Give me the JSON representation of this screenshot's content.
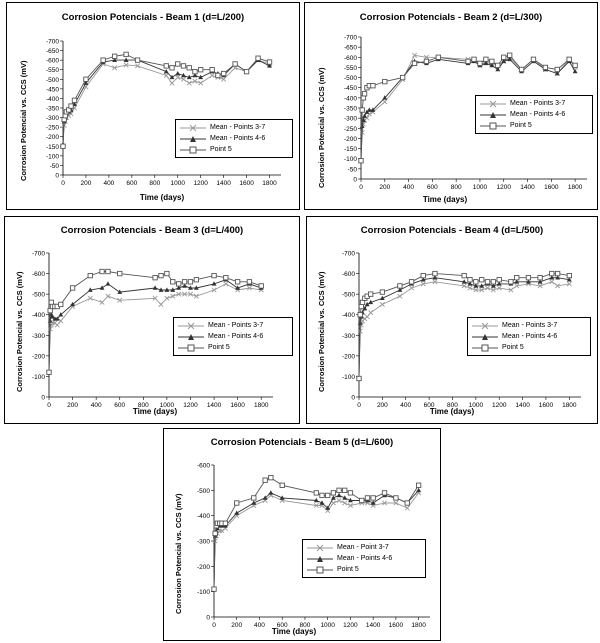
{
  "chart_data": [
    {
      "type": "line",
      "title": "Corrosion Potencials  - Beam 1 (d=L/200)",
      "xlabel": "Time (days)",
      "ylabel": "Corrosion Potencial vs. CCS (mV)",
      "xlim": [
        0,
        1900
      ],
      "ylim": [
        0,
        -700
      ],
      "xticks": [
        0,
        200,
        400,
        600,
        800,
        1000,
        1200,
        1400,
        1600,
        1800
      ],
      "yticks": [
        0,
        -50,
        -100,
        -150,
        -200,
        -250,
        -300,
        -350,
        -400,
        -450,
        -500,
        -550,
        -600,
        -650,
        -700
      ],
      "legend_position": "right",
      "series": [
        {
          "name": "Mean - Points 3-7",
          "color": "#999999",
          "marker": "x",
          "x": [
            0,
            10,
            20,
            30,
            50,
            70,
            100,
            200,
            350,
            450,
            550,
            650,
            900,
            950,
            1000,
            1050,
            1100,
            1150,
            1200,
            1300,
            1350,
            1400,
            1500,
            1600,
            1700,
            1800
          ],
          "y": [
            -150,
            -260,
            -280,
            -300,
            -310,
            -320,
            -350,
            -460,
            -580,
            -560,
            -575,
            -570,
            -520,
            -480,
            -510,
            -500,
            -480,
            -490,
            -480,
            -520,
            -510,
            -500,
            -560,
            -540,
            -600,
            -580
          ]
        },
        {
          "name": "Mean - Points 4-6",
          "color": "#333333",
          "marker": "triangle",
          "x": [
            0,
            10,
            20,
            30,
            50,
            70,
            100,
            200,
            350,
            450,
            550,
            650,
            900,
            950,
            1000,
            1050,
            1100,
            1150,
            1200,
            1300,
            1350,
            1400,
            1500,
            1600,
            1700,
            1800
          ],
          "y": [
            -160,
            -280,
            -300,
            -320,
            -330,
            -340,
            -370,
            -480,
            -590,
            -600,
            -600,
            -600,
            -540,
            -510,
            -530,
            -520,
            -510,
            -520,
            -510,
            -540,
            -530,
            -520,
            -580,
            -540,
            -600,
            -570
          ]
        },
        {
          "name": "Point 5",
          "color": "#555555",
          "marker": "square",
          "x": [
            0,
            10,
            20,
            30,
            50,
            70,
            100,
            200,
            350,
            450,
            550,
            650,
            900,
            950,
            1000,
            1050,
            1100,
            1150,
            1200,
            1300,
            1350,
            1400,
            1500,
            1600,
            1700,
            1800
          ],
          "y": [
            -150,
            -290,
            -310,
            -330,
            -340,
            -360,
            -390,
            -500,
            -600,
            -620,
            -630,
            -600,
            -570,
            -560,
            -580,
            -570,
            -560,
            -540,
            -550,
            -550,
            -520,
            -530,
            -580,
            -540,
            -610,
            -590
          ]
        }
      ]
    },
    {
      "type": "line",
      "title": "Corrosion Potencials  - Beam 2 (d=L/300)",
      "xlabel": "Time (days)",
      "ylabel": "Corrosion Potencial vs. CCS (mV)",
      "xlim": [
        0,
        1900
      ],
      "ylim": [
        0,
        -700
      ],
      "xticks": [
        0,
        200,
        400,
        600,
        800,
        1000,
        1200,
        1400,
        1600,
        1800
      ],
      "yticks": [
        0,
        -50,
        -100,
        -150,
        -200,
        -250,
        -300,
        -350,
        -400,
        -450,
        -500,
        -550,
        -600,
        -650,
        -700
      ],
      "legend_position": "right",
      "series": [
        {
          "name": "Mean - Points 3-7",
          "color": "#999999",
          "marker": "x",
          "x": [
            0,
            10,
            20,
            30,
            50,
            70,
            100,
            200,
            350,
            450,
            550,
            650,
            900,
            950,
            1000,
            1050,
            1100,
            1150,
            1200,
            1250,
            1350,
            1450,
            1550,
            1650,
            1750,
            1800
          ],
          "y": [
            -90,
            -230,
            -270,
            -290,
            -300,
            -320,
            -330,
            -380,
            -490,
            -610,
            -600,
            -600,
            -590,
            -590,
            -560,
            -580,
            -570,
            -560,
            -580,
            -600,
            -540,
            -590,
            -540,
            -520,
            -590,
            -550
          ]
        },
        {
          "name": "Mean - Points 4-6",
          "color": "#333333",
          "marker": "triangle",
          "x": [
            0,
            10,
            20,
            30,
            50,
            70,
            100,
            200,
            350,
            450,
            550,
            650,
            900,
            950,
            1000,
            1050,
            1100,
            1150,
            1200,
            1250,
            1350,
            1450,
            1550,
            1650,
            1750,
            1800
          ],
          "y": [
            -90,
            -260,
            -290,
            -310,
            -330,
            -340,
            -340,
            -400,
            -500,
            -580,
            -570,
            -590,
            -570,
            -580,
            -560,
            -570,
            -560,
            -540,
            -580,
            -590,
            -530,
            -580,
            -540,
            -520,
            -580,
            -530
          ]
        },
        {
          "name": "Point 5",
          "color": "#555555",
          "marker": "square",
          "x": [
            0,
            10,
            20,
            30,
            50,
            70,
            100,
            200,
            350,
            450,
            550,
            650,
            900,
            950,
            1000,
            1050,
            1100,
            1150,
            1200,
            1250,
            1350,
            1450,
            1550,
            1650,
            1750,
            1800
          ],
          "y": [
            -90,
            -340,
            -400,
            -420,
            -450,
            -460,
            -460,
            -480,
            -500,
            -570,
            -580,
            -600,
            -580,
            -590,
            -570,
            -590,
            -580,
            -560,
            -600,
            -610,
            -540,
            -590,
            -550,
            -540,
            -590,
            -560
          ]
        }
      ]
    },
    {
      "type": "line",
      "title": "Corrosion Potencials  - Beam 3 (d=L/400)",
      "xlabel": "Time (days)",
      "ylabel": "Corrosion Potencial vs. CCS (mV)",
      "xlim": [
        0,
        1900
      ],
      "ylim": [
        0,
        -700
      ],
      "xticks": [
        0,
        200,
        400,
        600,
        800,
        1000,
        1200,
        1400,
        1600,
        1800
      ],
      "yticks": [
        0,
        -100,
        -200,
        -300,
        -400,
        -500,
        -600,
        -700
      ],
      "legend_position": "right",
      "series": [
        {
          "name": "Mean - Points 3-7",
          "color": "#999999",
          "marker": "x",
          "x": [
            0,
            10,
            20,
            30,
            50,
            70,
            100,
            200,
            350,
            450,
            500,
            600,
            900,
            950,
            1000,
            1050,
            1100,
            1150,
            1200,
            1250,
            1400,
            1500,
            1600,
            1700,
            1800
          ],
          "y": [
            -120,
            -330,
            -350,
            -360,
            -360,
            -350,
            -370,
            -440,
            -480,
            -460,
            -490,
            -470,
            -480,
            -450,
            -480,
            -490,
            -500,
            -500,
            -500,
            -490,
            -520,
            -550,
            -520,
            -530,
            -520
          ]
        },
        {
          "name": "Mean - Points 4-6",
          "color": "#333333",
          "marker": "triangle",
          "x": [
            0,
            10,
            20,
            30,
            50,
            70,
            100,
            200,
            350,
            450,
            500,
            600,
            900,
            950,
            1000,
            1050,
            1100,
            1150,
            1200,
            1250,
            1400,
            1500,
            1600,
            1700,
            1800
          ],
          "y": [
            -120,
            -370,
            -400,
            -390,
            -380,
            -380,
            -400,
            -450,
            -520,
            -530,
            -550,
            -510,
            -530,
            -520,
            -520,
            -520,
            -530,
            -540,
            -530,
            -530,
            -550,
            -570,
            -530,
            -550,
            -530
          ]
        },
        {
          "name": "Point 5",
          "color": "#555555",
          "marker": "square",
          "x": [
            0,
            10,
            20,
            30,
            50,
            70,
            100,
            200,
            350,
            450,
            500,
            600,
            900,
            950,
            1000,
            1050,
            1100,
            1150,
            1200,
            1250,
            1400,
            1500,
            1600,
            1700,
            1800
          ],
          "y": [
            -120,
            -420,
            -460,
            -440,
            -440,
            -440,
            -450,
            -530,
            -590,
            -610,
            -610,
            -600,
            -580,
            -590,
            -600,
            -560,
            -550,
            -560,
            -560,
            -570,
            -590,
            -580,
            -560,
            -560,
            -540
          ]
        }
      ]
    },
    {
      "type": "line",
      "title": "Corrosion Potencials  - Beam 4 (d=L/500)",
      "xlabel": "Time (days)",
      "ylabel": "Corrosion Potencial vs. CCS (mV)",
      "xlim": [
        0,
        1900
      ],
      "ylim": [
        0,
        -700
      ],
      "xticks": [
        0,
        200,
        400,
        600,
        800,
        1000,
        1200,
        1400,
        1600,
        1800
      ],
      "yticks": [
        0,
        -100,
        -200,
        -300,
        -400,
        -500,
        -600,
        -700
      ],
      "legend_position": "right",
      "series": [
        {
          "name": "Mean - Points 3-7",
          "color": "#999999",
          "marker": "x",
          "x": [
            0,
            10,
            20,
            30,
            50,
            70,
            100,
            200,
            350,
            450,
            550,
            650,
            900,
            950,
            1000,
            1050,
            1100,
            1150,
            1200,
            1300,
            1350,
            1450,
            1550,
            1650,
            1700,
            1800
          ],
          "y": [
            -90,
            -320,
            -350,
            -370,
            -380,
            -390,
            -410,
            -450,
            -490,
            -530,
            -550,
            -560,
            -540,
            -530,
            -520,
            -520,
            -530,
            -520,
            -530,
            -520,
            -540,
            -550,
            -540,
            -560,
            -540,
            -550
          ]
        },
        {
          "name": "Mean - Points 4-6",
          "color": "#333333",
          "marker": "triangle",
          "x": [
            0,
            10,
            20,
            30,
            50,
            70,
            100,
            200,
            350,
            450,
            550,
            650,
            900,
            950,
            1000,
            1050,
            1100,
            1150,
            1200,
            1300,
            1350,
            1450,
            1550,
            1650,
            1700,
            1800
          ],
          "y": [
            -90,
            -360,
            -390,
            -410,
            -430,
            -450,
            -460,
            -480,
            -520,
            -550,
            -570,
            -580,
            -560,
            -550,
            -540,
            -540,
            -550,
            -540,
            -550,
            -550,
            -560,
            -560,
            -560,
            -580,
            -580,
            -570
          ]
        },
        {
          "name": "Point 5",
          "color": "#555555",
          "marker": "square",
          "x": [
            0,
            10,
            20,
            30,
            50,
            70,
            100,
            200,
            350,
            450,
            550,
            650,
            900,
            950,
            1000,
            1050,
            1100,
            1150,
            1200,
            1300,
            1350,
            1450,
            1550,
            1650,
            1700,
            1800
          ],
          "y": [
            -90,
            -400,
            -440,
            -460,
            -480,
            -490,
            -500,
            -510,
            -540,
            -560,
            -590,
            -600,
            -590,
            -570,
            -560,
            -570,
            -560,
            -560,
            -570,
            -560,
            -580,
            -580,
            -580,
            -600,
            -600,
            -590
          ]
        }
      ]
    },
    {
      "type": "line",
      "title": "Corrosion Potencials  - Beam 5 (d=L/600)",
      "xlabel": "Time (days)",
      "ylabel": "Corrosion Potencial vs. CCS (mV)",
      "xlim": [
        0,
        1900
      ],
      "ylim": [
        0,
        -600
      ],
      "xticks": [
        0,
        200,
        400,
        600,
        800,
        1000,
        1200,
        1400,
        1600,
        1800
      ],
      "yticks": [
        0,
        -100,
        -200,
        -300,
        -400,
        -500,
        -600
      ],
      "legend_position": "right",
      "series": [
        {
          "name": "Mean - Point 3-7",
          "color": "#999999",
          "marker": "x",
          "x": [
            0,
            10,
            20,
            30,
            50,
            70,
            100,
            200,
            350,
            450,
            500,
            600,
            900,
            950,
            1000,
            1050,
            1100,
            1150,
            1200,
            1300,
            1350,
            1400,
            1500,
            1600,
            1700,
            1800
          ],
          "y": [
            -110,
            -300,
            -320,
            -330,
            -340,
            -340,
            -350,
            -400,
            -440,
            -460,
            -480,
            -460,
            -440,
            -440,
            -420,
            -450,
            -460,
            -450,
            -440,
            -450,
            -450,
            -440,
            -450,
            -450,
            -430,
            -490
          ]
        },
        {
          "name": "Mean - Points 4-6",
          "color": "#333333",
          "marker": "triangle",
          "x": [
            0,
            10,
            20,
            30,
            50,
            70,
            100,
            200,
            350,
            450,
            500,
            600,
            900,
            950,
            1000,
            1050,
            1100,
            1150,
            1200,
            1300,
            1350,
            1400,
            1500,
            1600,
            1700,
            1800
          ],
          "y": [
            -110,
            -320,
            -340,
            -350,
            -360,
            -360,
            -360,
            -410,
            -450,
            -470,
            -490,
            -470,
            -460,
            -450,
            -430,
            -470,
            -480,
            -470,
            -460,
            -460,
            -460,
            -450,
            -480,
            -470,
            -450,
            -500
          ]
        },
        {
          "name": "Point 5",
          "color": "#555555",
          "marker": "square",
          "x": [
            0,
            10,
            20,
            30,
            50,
            70,
            100,
            200,
            350,
            450,
            500,
            600,
            900,
            950,
            1000,
            1050,
            1100,
            1150,
            1200,
            1300,
            1350,
            1400,
            1500,
            1600,
            1700,
            1800
          ],
          "y": [
            -110,
            -330,
            -360,
            -370,
            -370,
            -370,
            -370,
            -450,
            -470,
            -540,
            -550,
            -520,
            -490,
            -480,
            -480,
            -490,
            -500,
            -500,
            -490,
            -460,
            -470,
            -470,
            -490,
            -470,
            -450,
            -520
          ]
        }
      ]
    }
  ]
}
